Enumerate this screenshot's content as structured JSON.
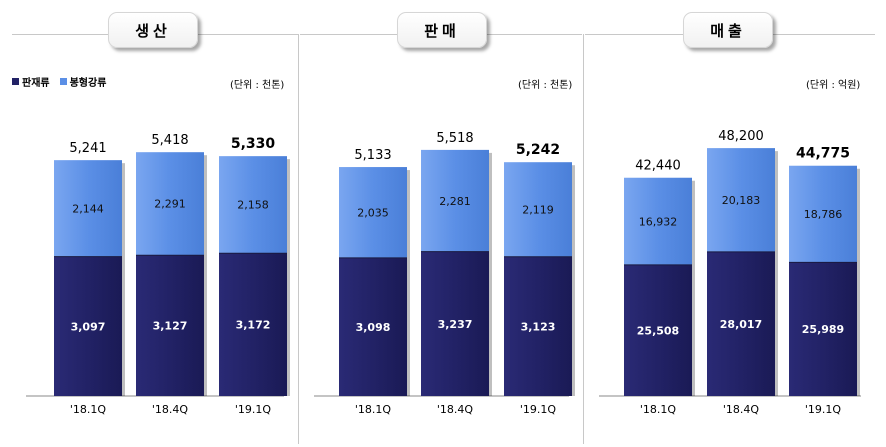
{
  "legend": [
    {
      "label": "판재류",
      "color": "#222266"
    },
    {
      "label": "봉형강류",
      "color": "#5b8fe6"
    }
  ],
  "colors": {
    "bottom": "#222266",
    "top": "#5b8fe6",
    "top_light": "#7aa6f0"
  },
  "chart_data": [
    {
      "type": "bar",
      "stacked": true,
      "title": "생산",
      "unit": "(단위 : 천톤)",
      "categories": [
        "'18.1Q",
        "'18.4Q",
        "'19.1Q"
      ],
      "series": [
        {
          "name": "판재류",
          "values": [
            3097,
            3127,
            3172
          ]
        },
        {
          "name": "봉형강류",
          "values": [
            2144,
            2291,
            2158
          ]
        }
      ],
      "totals": [
        5241,
        5418,
        5330
      ],
      "bottom_labels": [
        "3,097",
        "3,127",
        "3,172"
      ],
      "top_labels": [
        "2,144",
        "2,291",
        "2,158"
      ],
      "total_labels": [
        "5,241",
        "5,418",
        "5,330"
      ],
      "ylim": [
        0,
        5600
      ]
    },
    {
      "type": "bar",
      "stacked": true,
      "title": "판매",
      "unit": "(단위 : 천톤)",
      "categories": [
        "'18.1Q",
        "'18.4Q",
        "'19.1Q"
      ],
      "series": [
        {
          "name": "판재류",
          "values": [
            3098,
            3237,
            3123
          ]
        },
        {
          "name": "봉형강류",
          "values": [
            2035,
            2281,
            2119
          ]
        }
      ],
      "totals": [
        5133,
        5518,
        5242
      ],
      "bottom_labels": [
        "3,098",
        "3,237",
        "3,123"
      ],
      "top_labels": [
        "2,035",
        "2,281",
        "2,119"
      ],
      "total_labels": [
        "5,133",
        "5,518",
        "5,242"
      ],
      "ylim": [
        0,
        5650
      ]
    },
    {
      "type": "bar",
      "stacked": true,
      "title": "매출",
      "unit": "(단위 : 억원)",
      "categories": [
        "'18.1Q",
        "'18.4Q",
        "'19.1Q"
      ],
      "series": [
        {
          "name": "판재류",
          "values": [
            25508,
            28017,
            25989
          ]
        },
        {
          "name": "봉형강류",
          "values": [
            16932,
            20183,
            18786
          ]
        }
      ],
      "totals": [
        42440,
        48200,
        44775
      ],
      "bottom_labels": [
        "25,508",
        "28,017",
        "25,989"
      ],
      "top_labels": [
        "16,932",
        "20,183",
        "18,786"
      ],
      "total_labels": [
        "42,440",
        "48,200",
        "44,775"
      ],
      "ylim": [
        0,
        49000
      ]
    }
  ]
}
